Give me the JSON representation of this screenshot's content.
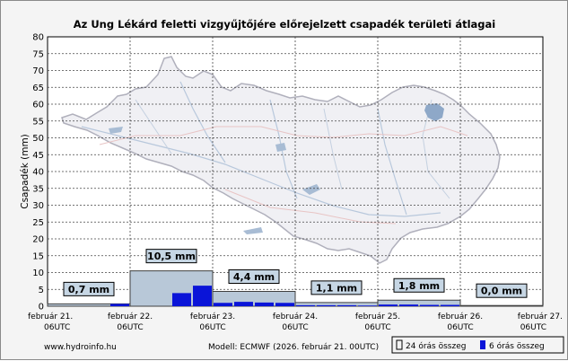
{
  "colors": {
    "background": "#f4f4f4",
    "plot_background": "#ffffff",
    "grid": "#444444",
    "bar24_fill": "#b8c8d8",
    "bar24_stroke": "#404040",
    "bar6_fill": "#0a14d8",
    "label_box_fill": "#c6d6e4",
    "map_outline": "#b0b0bc",
    "map_river": "#b8c8dc",
    "map_border": "#e8c4c4",
    "map_lake": "#8ea8c8"
  },
  "footer": {
    "website": "www.hydroinfo.hu",
    "model": "Modell: ECMWF (2026. február 21. 00UTC)"
  },
  "chart_data": {
    "type": "bar",
    "title": "Az Ung Lékárd feletti vizgyűjtőjére előrejelzett csapadék területi átlagai",
    "ylabel": "Csapadék (mm)",
    "xlabel": "",
    "ylim": [
      0,
      80
    ],
    "yticks": [
      0,
      5,
      10,
      15,
      20,
      25,
      30,
      35,
      40,
      45,
      50,
      55,
      60,
      65,
      70,
      75,
      80
    ],
    "grid": true,
    "legend_position": "bottom-right",
    "x_ticks": [
      {
        "date": "február 21.",
        "time": "06UTC"
      },
      {
        "date": "február 22.",
        "time": "06UTC"
      },
      {
        "date": "február 23.",
        "time": "06UTC"
      },
      {
        "date": "február 24.",
        "time": "06UTC"
      },
      {
        "date": "február 25.",
        "time": "06UTC"
      },
      {
        "date": "február 26.",
        "time": "06UTC"
      },
      {
        "date": "február 27.",
        "time": "06UTC"
      }
    ],
    "series": [
      {
        "name": "24 órás összeg",
        "values": [
          0.7,
          10.5,
          4.4,
          1.1,
          1.8,
          0.0
        ],
        "labels": [
          "0,7 mm",
          "10,5 mm",
          "4,4 mm",
          "1,1 mm",
          "1,8 mm",
          "0,0 mm"
        ]
      },
      {
        "name": "6 órás összeg",
        "values": [
          0.0,
          0.0,
          0.0,
          0.7,
          0.0,
          0.0,
          3.9,
          6.1,
          1.0,
          1.3,
          1.1,
          1.0,
          0.3,
          0.3,
          0.3,
          0.2,
          0.5,
          0.5,
          0.4,
          0.4,
          0.0,
          0.0,
          0.0,
          0.0
        ]
      }
    ]
  }
}
